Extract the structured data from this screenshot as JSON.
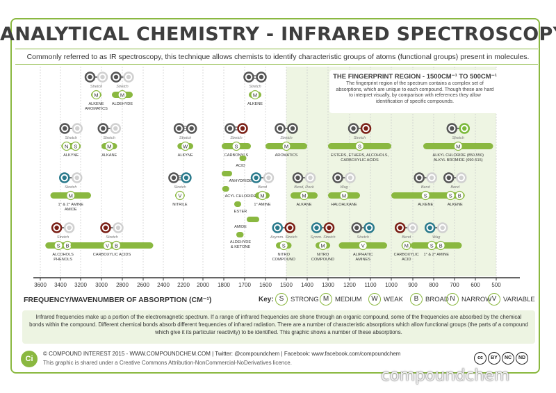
{
  "title": "ANALYTICAL CHEMISTRY - INFRARED SPECTROSCOPY",
  "subtitle": "Commonly referred to as IR spectroscopy, this technique allows chemists to identify characteristic groups of atoms (functional groups) present in molecules.",
  "fingerprint": {
    "title": "THE FINGERPRINT REGION - 1500CM⁻¹ TO 500CM⁻¹",
    "body": "The fingerprint region of the spectrum contains a complex set of absorptions, which are unique to each compound. Though these are hard to interpret visually, by comparison with references they allow identification of specific compounds."
  },
  "axis": {
    "label": "FREQUENCY/WAVENUMBER OF ABSORPTION (CM⁻¹)",
    "ticks": [
      "3600",
      "3400",
      "3200",
      "3000",
      "2800",
      "2600",
      "2400",
      "2200",
      "2000",
      "1800",
      "1700",
      "1600",
      "1500",
      "1400",
      "1300",
      "1200",
      "1100",
      "1000",
      "900",
      "800",
      "700",
      "600",
      "500"
    ]
  },
  "legend": {
    "key_label": "Key:",
    "items": [
      {
        "letter": "S",
        "label": "STRONG"
      },
      {
        "letter": "M",
        "label": "MEDIUM"
      },
      {
        "letter": "W",
        "label": "WEAK"
      },
      {
        "letter": "B",
        "label": "BROAD"
      },
      {
        "letter": "N",
        "label": "NARROW"
      },
      {
        "letter": "V",
        "label": "VARIABLE"
      }
    ]
  },
  "info": "Infrared frequencies make up a portion of the electromagnetic spectrum. If a range of infrared frequencies are shone through an organic compound, some of the frequencies are absorbed by the chemical bonds within the compound. Different chemical bonds absorb different frequencies of infrared radiation. There are a number of characteristic absorptions which allow functional groups (the parts of a compound which give it its particular reactivity) to be identified. This graphic shows a number of these absorptions.",
  "footer": {
    "line1": "© COMPOUND INTEREST 2015 - WWW.COMPOUNDCHEM.COM | Twitter: @compoundchem | Facebook: www.facebook.com/compoundchem",
    "line2": "This graphic is shared under a Creative Commons Attribution-NonCommercial-NoDerivatives licence.",
    "logo": "Ci",
    "cc": [
      "cc",
      "BY",
      "NC",
      "ND"
    ]
  },
  "watermark": "compoundchem",
  "colors": {
    "green": "#8ab840",
    "carbon": "#555555",
    "hydrogen": "#d0d0d0",
    "oxygen": "#7a1f16",
    "nitrogen": "#2a7a8c",
    "chlorine": "#7ab93a",
    "region": "#eef5e3"
  },
  "bonds": [
    {
      "name": "ALKENE AROMATICS",
      "vib": "Stretch",
      "atoms": [
        "C",
        "H"
      ],
      "order": 1,
      "lo": 3000,
      "hi": 3100,
      "tags": [
        "M"
      ],
      "row": 1
    },
    {
      "name": "ALDEHYDE",
      "vib": "Stretch",
      "atoms": [
        "C",
        "H"
      ],
      "order": 1,
      "lo": 2700,
      "hi": 2900,
      "tags": [
        "M"
      ],
      "row": 1
    },
    {
      "name": "ALKENE",
      "vib": "Stretch",
      "atoms": [
        "C",
        "C"
      ],
      "order": 2,
      "lo": 1620,
      "hi": 1680,
      "tags": [
        "M"
      ],
      "row": 1
    },
    {
      "name": "ALKYNE",
      "vib": "Stretch",
      "atoms": [
        "C",
        "H"
      ],
      "order": 1,
      "lo": 3260,
      "hi": 3330,
      "tags": [
        "N",
        "S"
      ],
      "row": 2
    },
    {
      "name": "ALKANE",
      "vib": "Stretch",
      "atoms": [
        "C",
        "H"
      ],
      "order": 1,
      "lo": 2850,
      "hi": 3000,
      "tags": [
        "M"
      ],
      "row": 2
    },
    {
      "name": "ALKYNE",
      "vib": "Stretch",
      "atoms": [
        "C",
        "C"
      ],
      "order": 3,
      "lo": 2100,
      "hi": 2260,
      "tags": [
        "W"
      ],
      "row": 2
    },
    {
      "name": "CARBONYLS",
      "vib": "Stretch",
      "atoms": [
        "C",
        "O"
      ],
      "order": 2,
      "lo": 1670,
      "hi": 1820,
      "tags": [
        "S"
      ],
      "row": 2
    },
    {
      "name": "AROMATICS",
      "vib": "Stretch",
      "atoms": [
        "C",
        "C"
      ],
      "order": 1,
      "lo": 1400,
      "hi": 1600,
      "tags": [
        "M"
      ],
      "row": 2
    },
    {
      "name": "ESTERS, ETHERS, ALCOHOLS, CARBOXYLIC ACIDS",
      "vib": "Stretch",
      "atoms": [
        "C",
        "O"
      ],
      "order": 1,
      "lo": 1000,
      "hi": 1300,
      "tags": [
        "S"
      ],
      "row": 2
    },
    {
      "name": "ALKYL CHLORIDE (850-550) ALKYL BROMIDE (690-515)",
      "vib": "Stretch",
      "atoms": [
        "C",
        "X"
      ],
      "order": 1,
      "lo": 515,
      "hi": 850,
      "tags": [
        "M"
      ],
      "row": 2
    },
    {
      "name": "1° & 2° AMINE AMIDE",
      "vib": "Stretch",
      "atoms": [
        "N",
        "H"
      ],
      "order": 1,
      "lo": 3100,
      "hi": 3500,
      "tags": [
        "M"
      ],
      "row": 3
    },
    {
      "name": "NITRILE",
      "vib": "Stretch",
      "atoms": [
        "C",
        "N"
      ],
      "order": 3,
      "lo": 2210,
      "hi": 2260,
      "tags": [
        "V"
      ],
      "row": 3
    },
    {
      "name": "1° AMINE",
      "vib": "Bend",
      "atoms": [
        "N",
        "H"
      ],
      "order": 1,
      "lo": 1580,
      "hi": 1650,
      "tags": [
        "M"
      ],
      "row": 3
    },
    {
      "name": "ALKANE",
      "vib": "Bend, Rock",
      "atoms": [
        "C",
        "H"
      ],
      "order": 1,
      "lo": 1350,
      "hi": 1480,
      "tags": [
        "M"
      ],
      "row": 3
    },
    {
      "name": "HALOALKANE",
      "vib": "Wag",
      "atoms": [
        "C",
        "H"
      ],
      "order": 1,
      "lo": 1150,
      "hi": 1300,
      "tags": [
        "M"
      ],
      "row": 3
    },
    {
      "name": "ALKENE",
      "vib": "Bend",
      "atoms": [
        "C",
        "H"
      ],
      "order": 1,
      "lo": 675,
      "hi": 1000,
      "tags": [
        "S"
      ],
      "row": 3
    },
    {
      "name": "ALKENE",
      "vib": "Bend",
      "atoms": [
        "C",
        "H"
      ],
      "order": 1,
      "lo": 665,
      "hi": 730,
      "tags": [
        "S",
        "B"
      ],
      "row": 3
    },
    {
      "name": "ALCOHOLS PHENOLS",
      "vib": "Stretch",
      "atoms": [
        "O",
        "H"
      ],
      "order": 1,
      "lo": 3200,
      "hi": 3550,
      "tags": [
        "S",
        "B"
      ],
      "row": 4
    },
    {
      "name": "CARBOXYLIC ACIDS",
      "vib": "Stretch",
      "atoms": [
        "O",
        "H"
      ],
      "order": 1,
      "lo": 2500,
      "hi": 3300,
      "tags": [
        "V",
        "B"
      ],
      "row": 4
    },
    {
      "name": "NITRO COMPOUND",
      "vib": "Asymm. Stretch",
      "atoms": [
        "N",
        "O"
      ],
      "order": 1,
      "lo": 1475,
      "hi": 1550,
      "tags": [
        "S"
      ],
      "row": 4
    },
    {
      "name": "NITRO COMPOUND",
      "vib": "Symm. Stretch",
      "atoms": [
        "N",
        "O"
      ],
      "order": 1,
      "lo": 1290,
      "hi": 1360,
      "tags": [
        "M"
      ],
      "row": 4
    },
    {
      "name": "ALIPHATIC AMINES",
      "vib": "Stretch",
      "atoms": [
        "C",
        "N"
      ],
      "order": 1,
      "lo": 1020,
      "hi": 1250,
      "tags": [
        "V"
      ],
      "row": 4
    },
    {
      "name": "CARBOXYLIC ACID",
      "vib": "Bend",
      "atoms": [
        "O",
        "H"
      ],
      "order": 1,
      "lo": 910,
      "hi": 950,
      "tags": [
        "M"
      ],
      "row": 4
    },
    {
      "name": "1° & 2° AMINE",
      "vib": "Wag",
      "atoms": [
        "N",
        "H"
      ],
      "order": 1,
      "lo": 665,
      "hi": 910,
      "tags": [
        "S",
        "B"
      ],
      "row": 4
    }
  ],
  "carbonyl_subtypes": [
    {
      "name": "ACID",
      "lo": 1700,
      "hi": 1725
    },
    {
      "name": "ANHYDRIDE",
      "lo": 1760,
      "hi": 1820
    },
    {
      "name": "ACYL CHLORIDE",
      "lo": 1785,
      "hi": 1815
    },
    {
      "name": "ESTER",
      "lo": 1735,
      "hi": 1750
    },
    {
      "name": "AMIDE",
      "lo": 1630,
      "hi": 1690
    },
    {
      "name": "ALDEHYDE & KETONE",
      "lo": 1705,
      "hi": 1740
    }
  ]
}
